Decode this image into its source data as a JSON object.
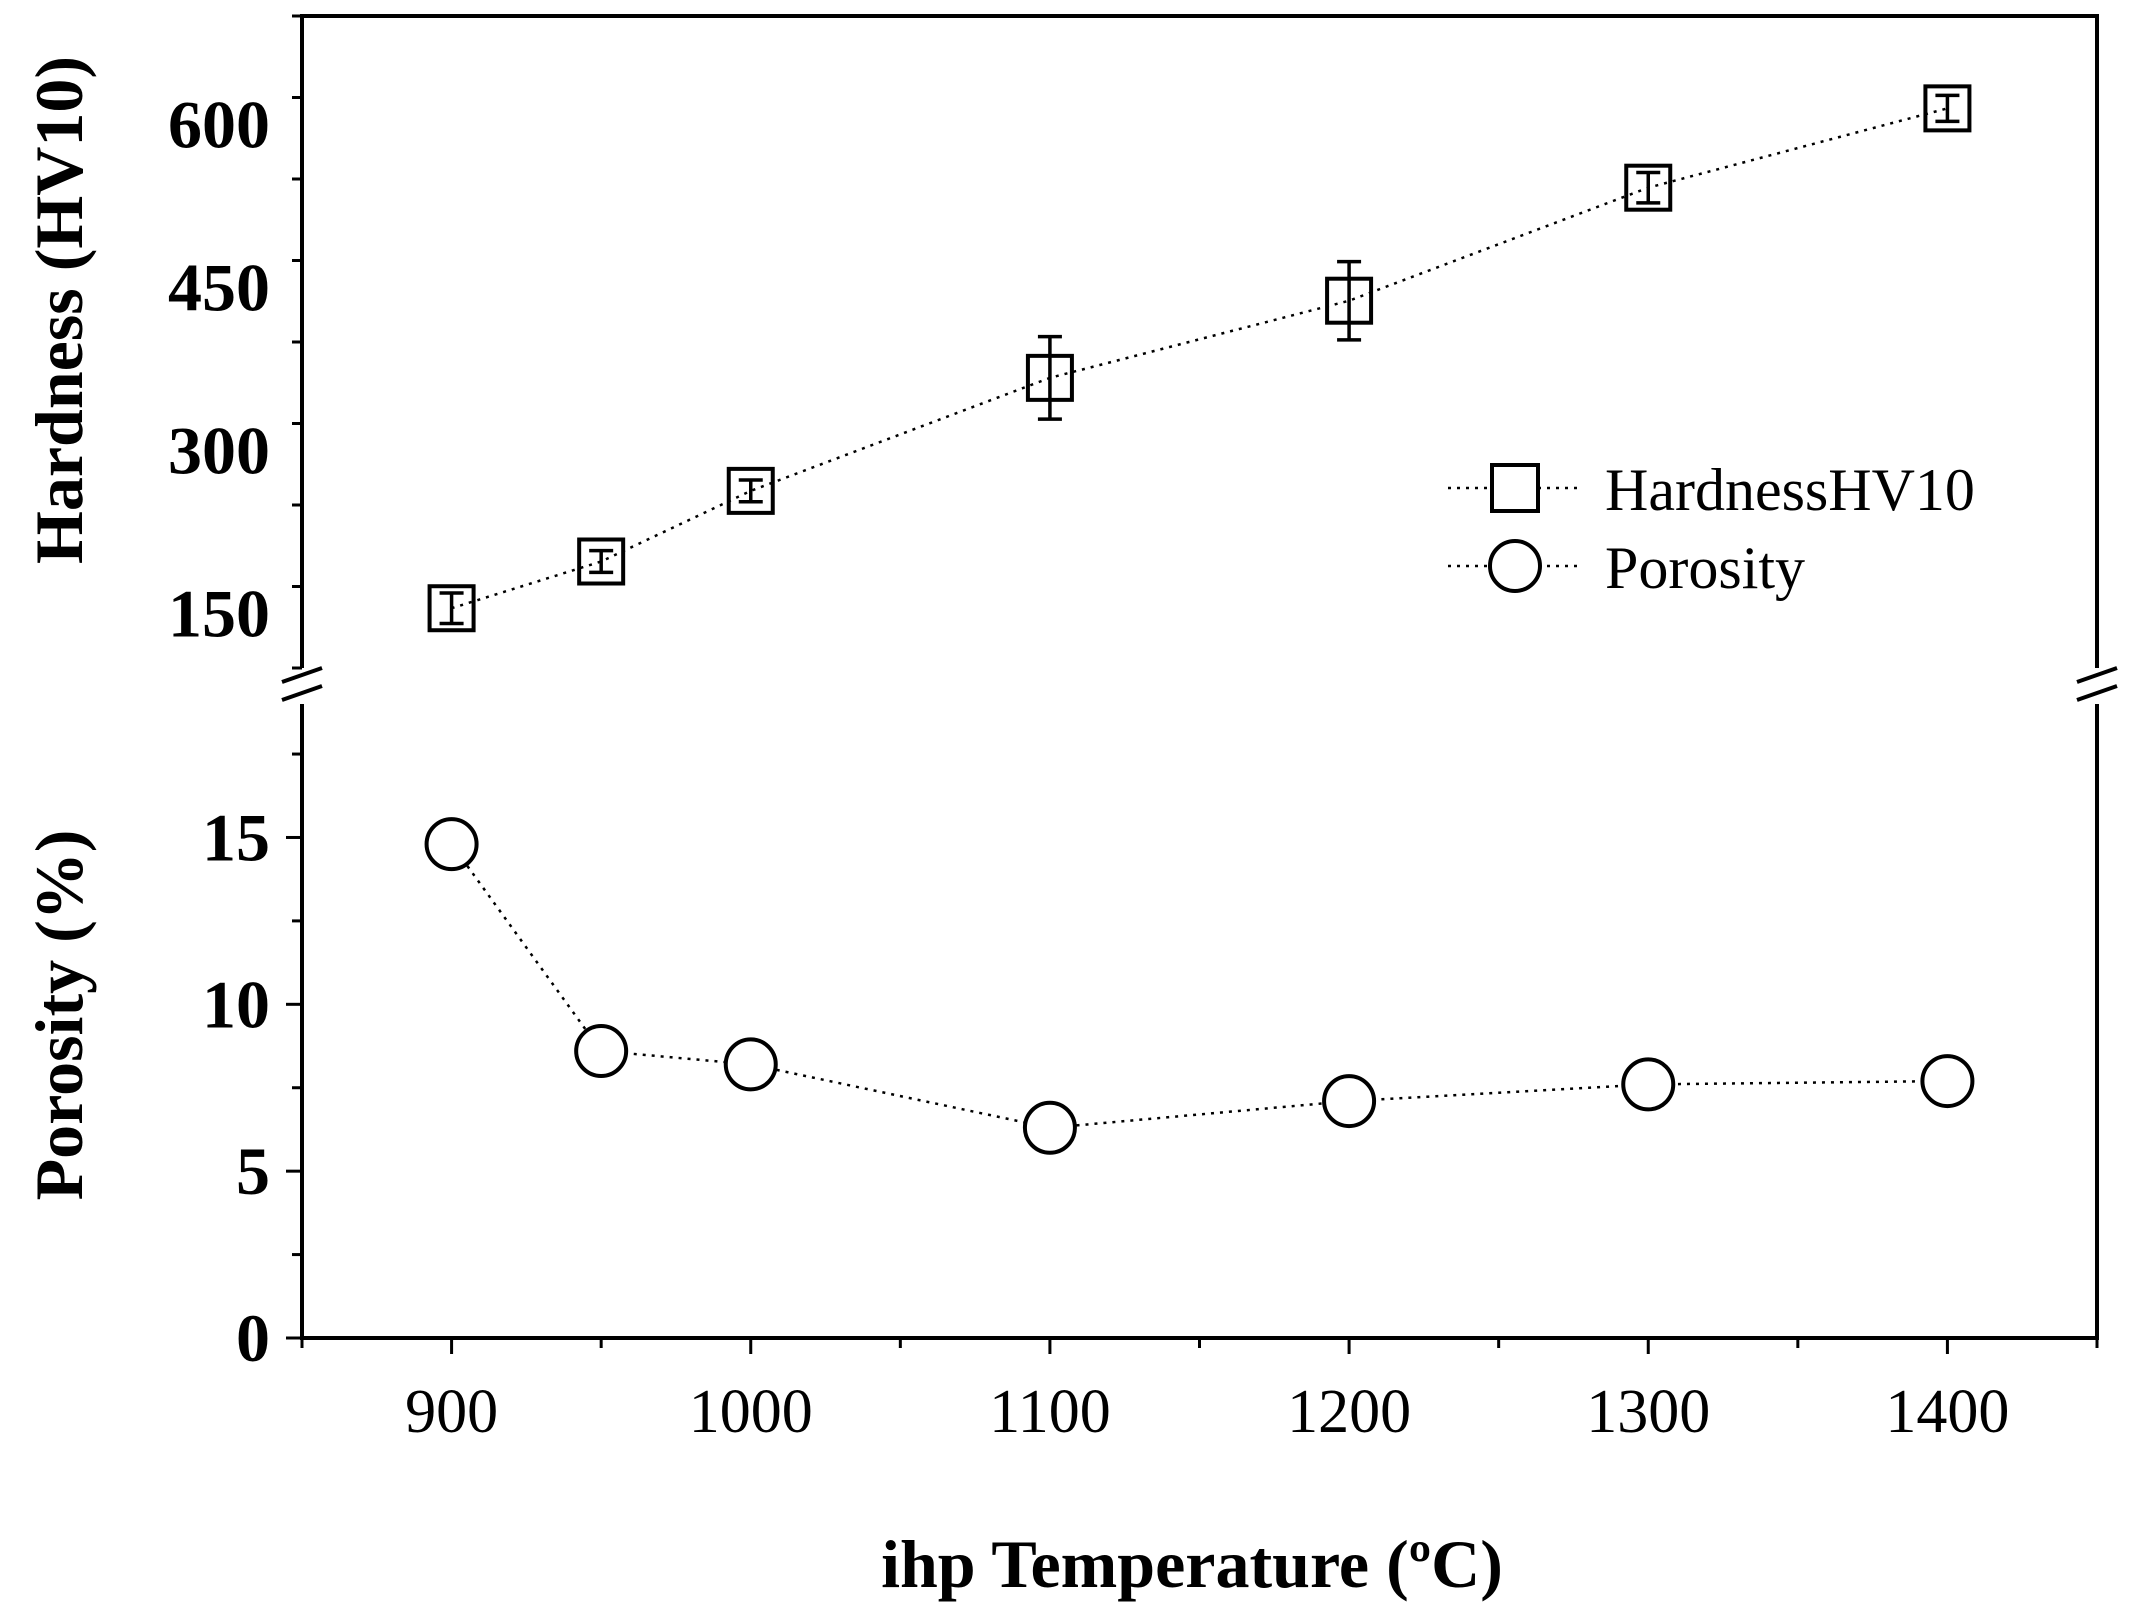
{
  "chart_data": {
    "type": "line",
    "title": "",
    "xlabel": "ihp Temperature (ºC)",
    "x_ticks": [
      "900",
      "1000",
      "1100",
      "1200",
      "1300",
      "1400"
    ],
    "xlim": [
      850,
      1450
    ],
    "x": [
      900,
      950,
      1000,
      1100,
      1200,
      1300,
      1400
    ],
    "panels": [
      {
        "ylabel": "Hardness (HV10)",
        "ylim": [
          100,
          700
        ],
        "y_ticks": [
          "150",
          "300",
          "450",
          "600"
        ],
        "series": [
          {
            "name": "HardnessHV10",
            "marker": "square",
            "values": [
              155,
              198,
              263,
              367,
              438,
              542,
              615
            ],
            "error": [
              14,
              10,
              10,
              38,
              36,
              14,
              12
            ]
          }
        ]
      },
      {
        "ylabel": "Porosity (%)",
        "ylim": [
          0,
          19
        ],
        "y_ticks": [
          "0",
          "5",
          "10",
          "15"
        ],
        "series": [
          {
            "name": "Porosity",
            "marker": "circle",
            "values": [
              14.8,
              8.6,
              8.2,
              6.3,
              7.1,
              7.6,
              7.7
            ]
          }
        ]
      }
    ],
    "legend": {
      "placement": "upper-right of top panel",
      "entries": [
        "HardnessHV10",
        "Porosity"
      ]
    }
  }
}
